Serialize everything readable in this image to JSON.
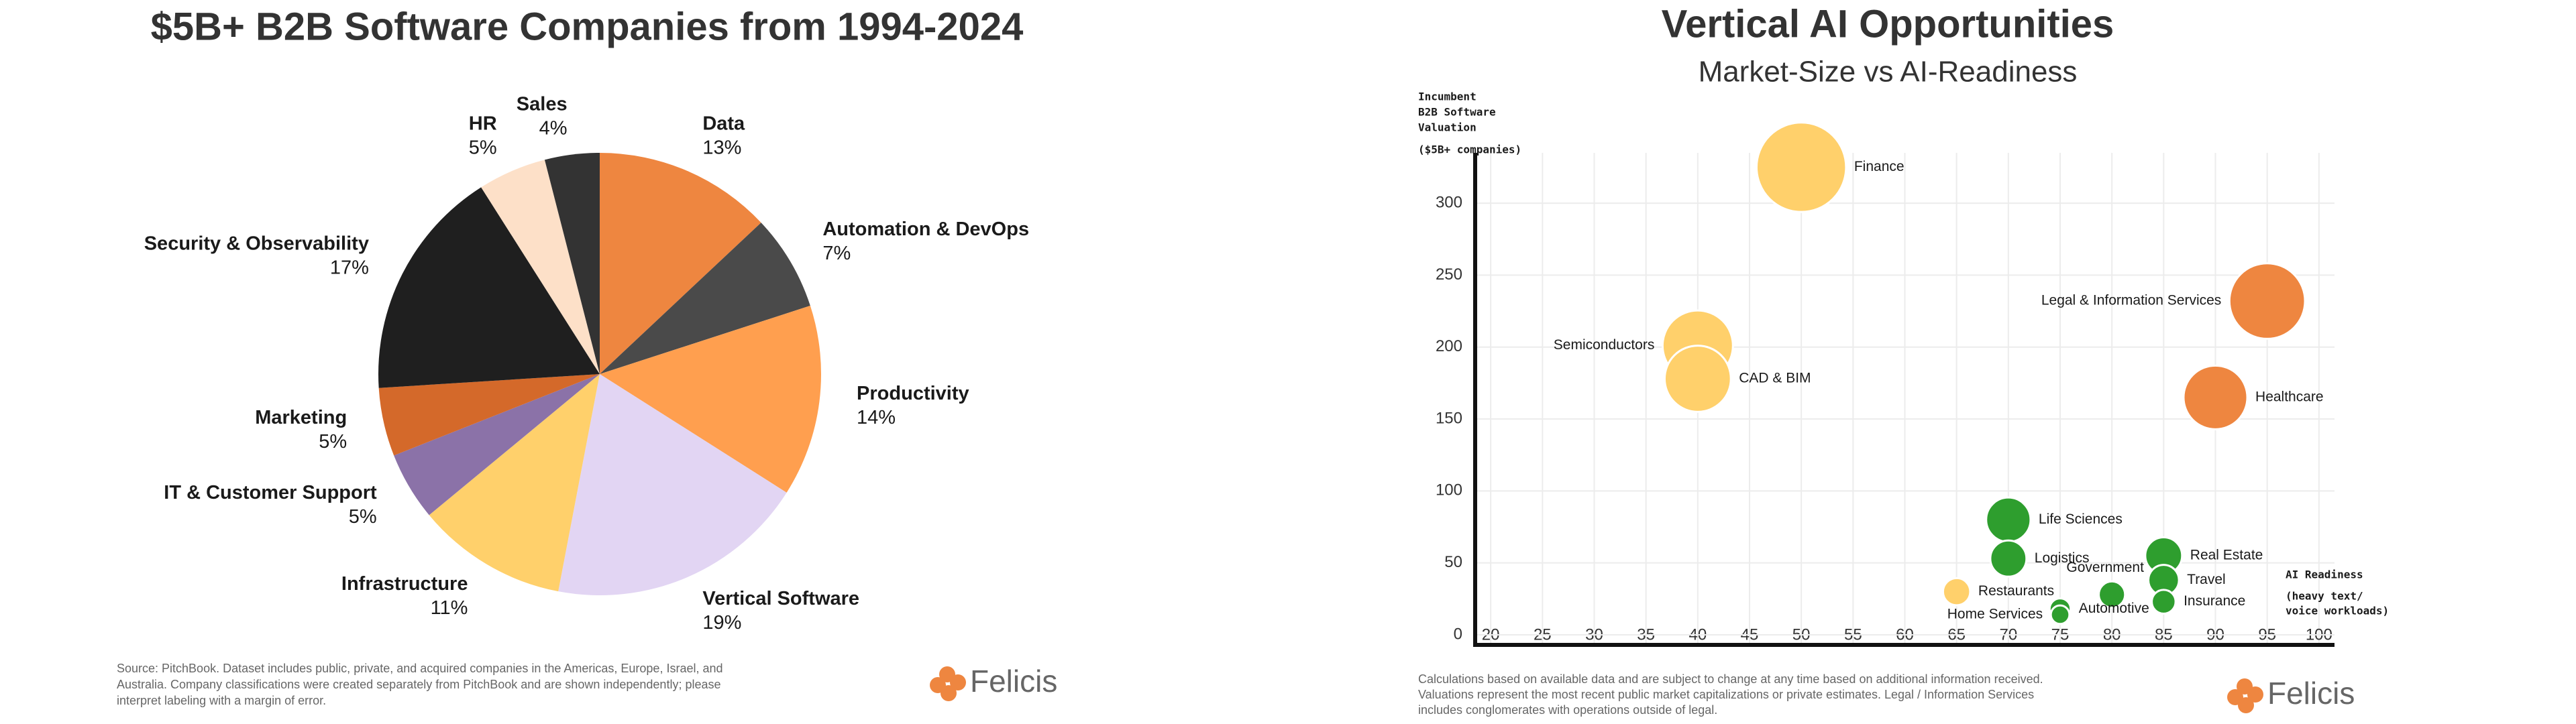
{
  "brand": "Felicis",
  "chart_data": [
    {
      "type": "pie",
      "title": "$5B+ B2B Software Companies from 1994-2024",
      "categories": [
        "Data",
        "Automation & DevOps",
        "Productivity",
        "Vertical Software",
        "Infrastructure",
        "IT & Customer Support",
        "Marketing",
        "Security & Observability",
        "HR",
        "Sales"
      ],
      "values": [
        13,
        7,
        14,
        19,
        11,
        5,
        5,
        17,
        5,
        4
      ],
      "value_labels": [
        "13%",
        "7%",
        "14%",
        "19%",
        "11%",
        "5%",
        "5%",
        "17%",
        "5%",
        "4%"
      ],
      "colors": [
        "#ee8640",
        "#4a4a4a",
        "#ff9f4f",
        "#e2d5f3",
        "#ffd06b",
        "#8b72a8",
        "#d4692a",
        "#1f1f1f",
        "#fde0c8",
        "#333333"
      ],
      "notes": [
        "Source: PitchBook. Dataset includes public, private, and acquired companies in the Americas, Europe, Israel, and",
        "Australia. Company classifications were created separately from PitchBook and are shown independently; please",
        "interpret labeling with a margin of error."
      ]
    },
    {
      "type": "scatter",
      "title": "Vertical AI Opportunities",
      "subtitle": "Market-Size vs AI-Readiness",
      "ylabel": [
        "Incumbent",
        "B2B Software",
        "Valuation",
        "($5B+ companies)"
      ],
      "xlabel": [
        "AI Readiness",
        "(heavy text/",
        "voice workloads)"
      ],
      "labels": [
        "Finance",
        "Semiconductors",
        "CAD & BIM",
        "Legal & Information Services",
        "Healthcare",
        "Life Sciences",
        "Logistics",
        "Real Estate",
        "Travel",
        "Insurance",
        "Government",
        "Restaurants",
        "Automotive",
        "Home Services"
      ],
      "x": [
        50,
        40,
        40,
        95,
        90,
        70,
        70,
        85,
        85,
        85,
        80,
        65,
        75,
        75
      ],
      "y": [
        325,
        201,
        178,
        232,
        165,
        80,
        53,
        55,
        38,
        23,
        28,
        30,
        18,
        14
      ],
      "colors": [
        "#ffd06b",
        "#ffd06b",
        "#ffd06b",
        "#ee8640",
        "#ee8640",
        "#2e9e2e",
        "#2e9e2e",
        "#2e9e2e",
        "#2e9e2e",
        "#2e9e2e",
        "#2e9e2e",
        "#ffd06b",
        "#2e9e2e",
        "#2e9e2e"
      ],
      "xlim": [
        18.5,
        101.5
      ],
      "ylim": [
        -7,
        335
      ],
      "xticks": [
        20,
        25,
        30,
        35,
        40,
        45,
        50,
        55,
        60,
        65,
        70,
        75,
        80,
        85,
        90,
        95,
        100
      ],
      "yticks": [
        0,
        50,
        100,
        150,
        200,
        250,
        300
      ],
      "grid": true,
      "notes": [
        "Calculations based on available data and are subject to change at any time based on additional information received.",
        "Valuations represent the most recent public market capitalizations or private estimates. Legal / Information Services",
        "includes conglomerates with operations outside of legal."
      ]
    }
  ]
}
